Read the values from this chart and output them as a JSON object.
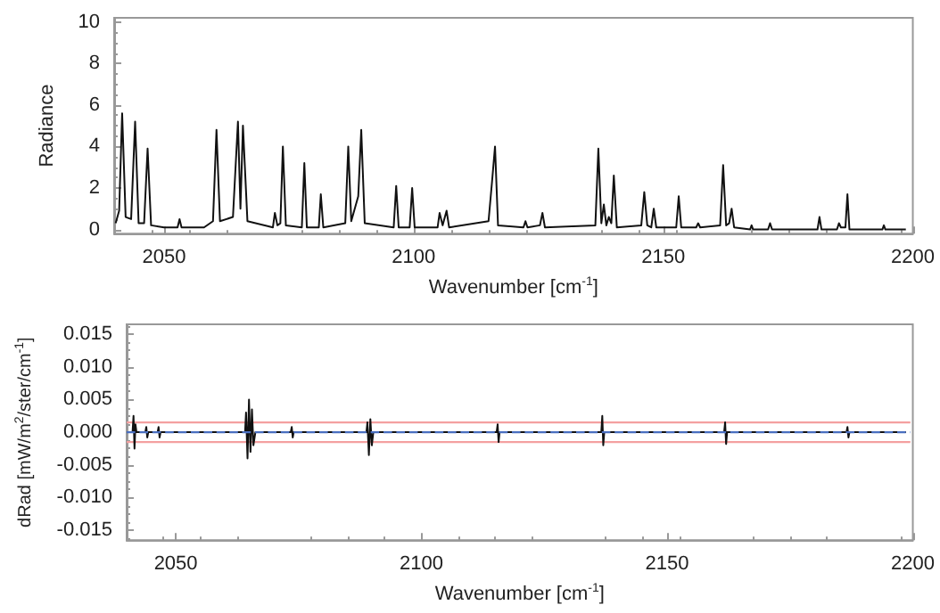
{
  "chart_data": [
    {
      "type": "line",
      "xlabel": "Wavenumber [cm$^{-1}$]",
      "ylabel": "Radiance",
      "xlim": [
        2040,
        2200
      ],
      "xticks": [
        2050,
        2100,
        2150,
        2200
      ],
      "ylim": [
        -0.2,
        10.2
      ],
      "yticks": [
        0,
        2,
        4,
        6,
        8,
        10
      ],
      "series": [
        {
          "color": "#111111",
          "x": [
            2040.3,
            2041.0,
            2041.6,
            2042.3,
            2043.4,
            2044.2,
            2044.9,
            2046.0,
            2046.7,
            2047.4,
            2050,
            2052.7,
            2053.1,
            2053.5,
            2058,
            2059.8,
            2060.5,
            2061.2,
            2063.8,
            2064.8,
            2065.3,
            2065.8,
            2066.7,
            2071.8,
            2072.2,
            2072.7,
            2073.3,
            2073.8,
            2074.4,
            2077.6,
            2078.1,
            2078.6,
            2081.0,
            2081.4,
            2081.9,
            2086.3,
            2086.9,
            2087.5,
            2088.9,
            2089.5,
            2090.2,
            2096.0,
            2096.5,
            2097.0,
            2099.2,
            2099.7,
            2100.2,
            2104.8,
            2105.2,
            2105.8,
            2106.6,
            2107.1,
            2115.0,
            2115.7,
            2116.3,
            2116.9,
            2122.0,
            2122.4,
            2122.8,
            2125.3,
            2125.8,
            2126.3,
            2136.4,
            2137.0,
            2137.6,
            2138.1,
            2138.6,
            2139.1,
            2139.6,
            2140.1,
            2140.7,
            2145.6,
            2146.2,
            2146.8,
            2147.6,
            2148.1,
            2148.6,
            2152.6,
            2153.1,
            2153.6,
            2156.6,
            2157.0,
            2157.4,
            2161.4,
            2162.0,
            2162.6,
            2163.2,
            2163.7,
            2164.2,
            2167.4,
            2167.7,
            2168.0,
            2171.0,
            2171.4,
            2171.8,
            2180.9,
            2181.3,
            2181.7,
            2184.8,
            2185.2,
            2185.6,
            2186.5,
            2186.9,
            2187.3,
            2193.9,
            2194.2,
            2194.5,
            2198.6
          ],
          "values": [
            0.3,
            0.9,
            5.6,
            0.6,
            0.5,
            5.2,
            0.3,
            0.3,
            3.9,
            0.2,
            0.1,
            0.1,
            0.5,
            0.1,
            0.1,
            0.4,
            4.8,
            0.4,
            0.6,
            5.2,
            1.0,
            5.0,
            0.4,
            0.1,
            0.8,
            0.2,
            0.3,
            4.0,
            0.2,
            0.1,
            3.2,
            0.1,
            0.1,
            1.7,
            0.1,
            0.3,
            4.0,
            0.4,
            1.6,
            4.8,
            0.3,
            0.1,
            2.1,
            0.1,
            0.1,
            2.0,
            0.1,
            0.1,
            0.8,
            0.2,
            0.9,
            0.1,
            0.4,
            2.3,
            4.0,
            0.2,
            0.1,
            0.4,
            0.1,
            0.2,
            0.8,
            0.1,
            0.2,
            3.9,
            0.3,
            1.2,
            0.2,
            0.6,
            0.3,
            2.6,
            0.1,
            0.2,
            1.8,
            0.2,
            0.1,
            1.0,
            0.1,
            0.1,
            1.6,
            0.1,
            0.1,
            0.3,
            0.1,
            0.2,
            3.1,
            0.2,
            0.3,
            1.0,
            0.1,
            0,
            0.2,
            0,
            0,
            0.3,
            0,
            0,
            0.6,
            0,
            0,
            0.3,
            0.1,
            0.1,
            1.7,
            0,
            0,
            0.2,
            0,
            0
          ]
        }
      ]
    },
    {
      "type": "line",
      "xlabel": "Wavenumber [cm$^{-1}$]",
      "ylabel": "dRad [mW/m$^{2}$/ster/cm$^{-1}$]",
      "xlim": [
        2040,
        2200
      ],
      "xticks": [
        2050,
        2100,
        2150,
        2200
      ],
      "ylim": [
        -0.0165,
        0.0165
      ],
      "yticks": [
        {
          "value": -0.015,
          "label": "-0.015"
        },
        {
          "value": -0.01,
          "label": "-0.010"
        },
        {
          "value": -0.005,
          "label": "-0.005"
        },
        {
          "value": 0,
          "label": "0.000"
        },
        {
          "value": 0.005,
          "label": "0.005"
        },
        {
          "value": 0.01,
          "label": "0.010"
        },
        {
          "value": 0.015,
          "label": "0.015"
        }
      ],
      "ref_lines": [
        {
          "axis": "y",
          "value": 0.0015,
          "color": "#f4a0a0",
          "line_style": "solid"
        },
        {
          "axis": "y",
          "value": -0.0015,
          "color": "#f4a0a0",
          "line_style": "solid"
        },
        {
          "axis": "y",
          "value": 0,
          "color": "#4a6fc0",
          "line_style": "dashed"
        }
      ],
      "series": [
        {
          "color": "#111111",
          "x": [
            2040.3,
            2041.2,
            2041.4,
            2041.6,
            2041.8,
            2042.0,
            2043.8,
            2044.0,
            2044.2,
            2044.4,
            2046.3,
            2046.5,
            2046.7,
            2046.9,
            2064.1,
            2064.3,
            2064.6,
            2064.9,
            2065.2,
            2065.5,
            2065.8,
            2066.2,
            2073.4,
            2073.6,
            2073.8,
            2074.0,
            2088.8,
            2089.0,
            2089.3,
            2089.6,
            2089.9,
            2090.2,
            2115.3,
            2115.5,
            2115.7,
            2115.9,
            2136.6,
            2136.8,
            2137.0,
            2137.2,
            2161.6,
            2161.8,
            2162.0,
            2162.2,
            2186.5,
            2186.7,
            2186.9,
            2187.1,
            2198.6
          ],
          "values": [
            0,
            0,
            0.0025,
            -0.0025,
            0.0012,
            0,
            0,
            0.0008,
            -0.0008,
            0,
            0,
            0.0008,
            -0.0008,
            0,
            0,
            0.003,
            -0.004,
            0.005,
            -0.003,
            0.0035,
            -0.002,
            0,
            0,
            0.0008,
            -0.0008,
            0,
            0,
            0.0015,
            -0.0035,
            0.002,
            -0.002,
            0,
            0,
            0.0012,
            -0.0015,
            0,
            0,
            0.0025,
            -0.002,
            0,
            0,
            0.0015,
            -0.0018,
            0,
            0,
            0.0008,
            -0.0008,
            0,
            0
          ]
        }
      ]
    }
  ]
}
